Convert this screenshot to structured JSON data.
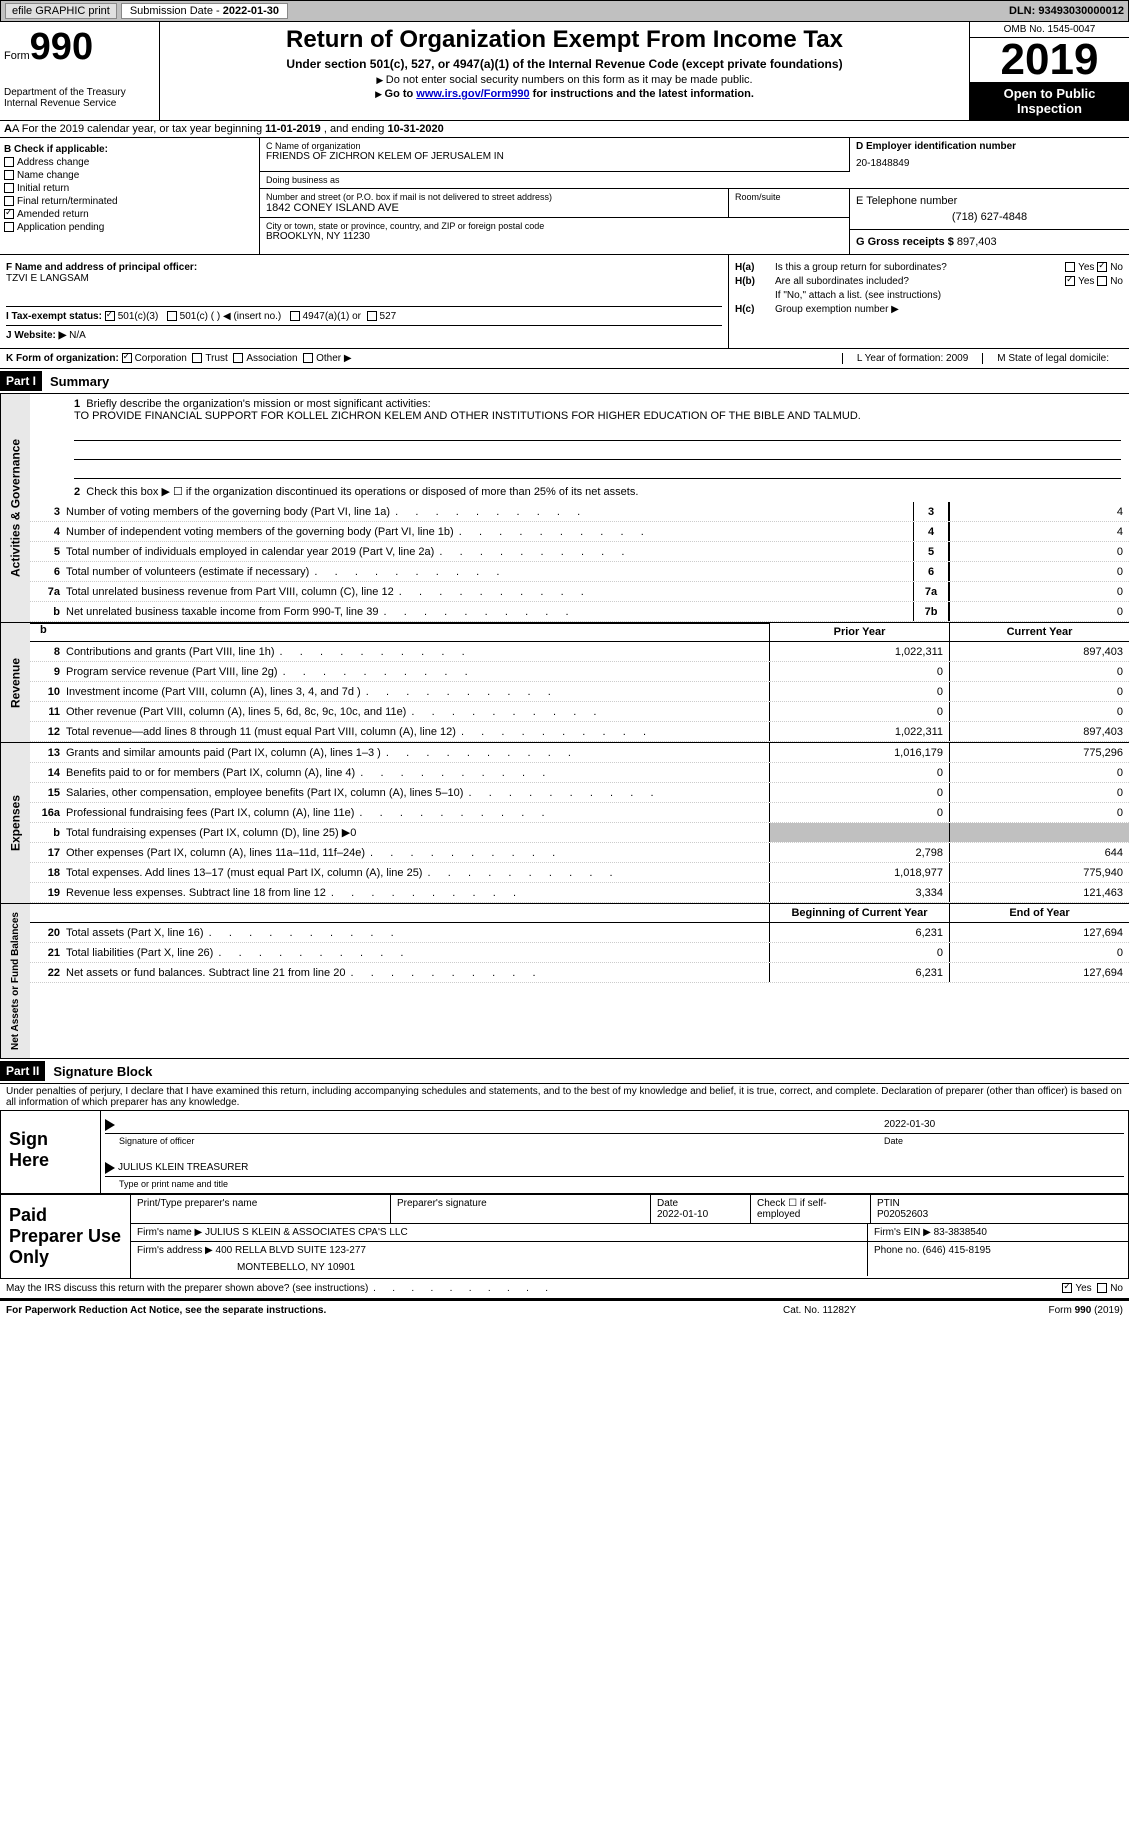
{
  "topbar": {
    "efile": "efile GRAPHIC print",
    "sub_label": "Submission Date - ",
    "sub_date": "2022-01-30",
    "dln": "DLN: 93493030000012"
  },
  "header": {
    "form_word": "Form",
    "form_num": "990",
    "dept": "Department of the Treasury\nInternal Revenue Service",
    "title": "Return of Organization Exempt From Income Tax",
    "sub": "Under section 501(c), 527, or 4947(a)(1) of the Internal Revenue Code (except private foundations)",
    "note1": "Do not enter social security numbers on this form as it may be made public.",
    "note2_pre": "Go to ",
    "note2_link": "www.irs.gov/Form990",
    "note2_post": " for instructions and the latest information.",
    "omb": "OMB No. 1545-0047",
    "year": "2019",
    "open": "Open to Public Inspection"
  },
  "row_a": {
    "text_pre": "A For the 2019 calendar year, or tax year beginning ",
    "begin": "11-01-2019",
    "mid": "  , and ending ",
    "end": "10-31-2020"
  },
  "box_b": {
    "hdr": "B Check if applicable:",
    "items": [
      {
        "label": "Address change",
        "checked": false
      },
      {
        "label": "Name change",
        "checked": false
      },
      {
        "label": "Initial return",
        "checked": false
      },
      {
        "label": "Final return/terminated",
        "checked": false
      },
      {
        "label": "Amended return",
        "checked": true
      },
      {
        "label": "Application pending",
        "checked": false
      }
    ]
  },
  "box_c": {
    "name_hdr": "C Name of organization",
    "name": "FRIENDS OF ZICHRON KELEM OF JERUSALEM IN",
    "dba_hdr": "Doing business as",
    "dba": "",
    "addr_hdr": "Number and street (or P.O. box if mail is not delivered to street address)",
    "room_hdr": "Room/suite",
    "addr": "1842 CONEY ISLAND AVE",
    "city_hdr": "City or town, state or province, country, and ZIP or foreign postal code",
    "city": "BROOKLYN, NY  11230"
  },
  "box_d": {
    "ein_hdr": "D Employer identification number",
    "ein": "20-1848849",
    "tel_hdr": "E Telephone number",
    "tel": "(718) 627-4848",
    "gross_hdr": "G Gross receipts $ ",
    "gross": "897,403"
  },
  "box_f": {
    "hdr": "F  Name and address of principal officer:",
    "name": "TZVI E LANGSAM"
  },
  "box_i": {
    "hdr": "I  Tax-exempt status:",
    "opts": [
      "501(c)(3)",
      "501(c) (   ) ◀ (insert no.)",
      "4947(a)(1) or",
      "527"
    ]
  },
  "box_j": {
    "hdr": "J  Website: ▶",
    "val": "  N/A"
  },
  "box_h": {
    "a": "Is this a group return for subordinates?",
    "b": "Are all subordinates included?",
    "b_note": "If \"No,\" attach a list. (see instructions)",
    "c": "Group exemption number ▶",
    "yes": "Yes",
    "no": "No"
  },
  "box_k": {
    "hdr": "K Form of organization:",
    "opts": [
      "Corporation",
      "Trust",
      "Association",
      "Other ▶"
    ]
  },
  "box_lm": {
    "l": "L Year of formation: 2009",
    "m": "M State of legal domicile:"
  },
  "part1": {
    "hdr": "Part I",
    "title": "Summary",
    "q1": "Briefly describe the organization's mission or most significant activities:",
    "mission": "TO PROVIDE FINANCIAL SUPPORT FOR KOLLEL ZICHRON KELEM AND OTHER INSTITUTIONS FOR HIGHER EDUCATION OF THE BIBLE AND TALMUD.",
    "q2": "Check this box ▶ ☐  if the organization discontinued its operations or disposed of more than 25% of its net assets.",
    "col_py": "Prior Year",
    "col_cy": "Current Year",
    "col_boy": "Beginning of Current Year",
    "col_eoy": "End of Year",
    "side_gov": "Activities & Governance",
    "side_rev": "Revenue",
    "side_exp": "Expenses",
    "side_net": "Net Assets or Fund Balances",
    "gov_rows": [
      {
        "n": "3",
        "lbl": "Number of voting members of the governing body (Part VI, line 1a)",
        "box": "3",
        "v": "4"
      },
      {
        "n": "4",
        "lbl": "Number of independent voting members of the governing body (Part VI, line 1b)",
        "box": "4",
        "v": "4"
      },
      {
        "n": "5",
        "lbl": "Total number of individuals employed in calendar year 2019 (Part V, line 2a)",
        "box": "5",
        "v": "0"
      },
      {
        "n": "6",
        "lbl": "Total number of volunteers (estimate if necessary)",
        "box": "6",
        "v": "0"
      },
      {
        "n": "7a",
        "lbl": "Total unrelated business revenue from Part VIII, column (C), line 12",
        "box": "7a",
        "v": "0"
      },
      {
        "n": "b",
        "lbl": "Net unrelated business taxable income from Form 990-T, line 39",
        "box": "7b",
        "v": "0"
      }
    ],
    "rev_rows": [
      {
        "n": "8",
        "lbl": "Contributions and grants (Part VIII, line 1h)",
        "py": "1,022,311",
        "cy": "897,403"
      },
      {
        "n": "9",
        "lbl": "Program service revenue (Part VIII, line 2g)",
        "py": "0",
        "cy": "0"
      },
      {
        "n": "10",
        "lbl": "Investment income (Part VIII, column (A), lines 3, 4, and 7d )",
        "py": "0",
        "cy": "0"
      },
      {
        "n": "11",
        "lbl": "Other revenue (Part VIII, column (A), lines 5, 6d, 8c, 9c, 10c, and 11e)",
        "py": "0",
        "cy": "0"
      },
      {
        "n": "12",
        "lbl": "Total revenue—add lines 8 through 11 (must equal Part VIII, column (A), line 12)",
        "py": "1,022,311",
        "cy": "897,403"
      }
    ],
    "exp_rows": [
      {
        "n": "13",
        "lbl": "Grants and similar amounts paid (Part IX, column (A), lines 1–3 )",
        "py": "1,016,179",
        "cy": "775,296"
      },
      {
        "n": "14",
        "lbl": "Benefits paid to or for members (Part IX, column (A), line 4)",
        "py": "0",
        "cy": "0"
      },
      {
        "n": "15",
        "lbl": "Salaries, other compensation, employee benefits (Part IX, column (A), lines 5–10)",
        "py": "0",
        "cy": "0"
      },
      {
        "n": "16a",
        "lbl": "Professional fundraising fees (Part IX, column (A), line 11e)",
        "py": "0",
        "cy": "0"
      },
      {
        "n": "b",
        "lbl": "Total fundraising expenses (Part IX, column (D), line 25) ▶0",
        "py": "",
        "cy": "",
        "shaded": true
      },
      {
        "n": "17",
        "lbl": "Other expenses (Part IX, column (A), lines 11a–11d, 11f–24e)",
        "py": "2,798",
        "cy": "644"
      },
      {
        "n": "18",
        "lbl": "Total expenses. Add lines 13–17 (must equal Part IX, column (A), line 25)",
        "py": "1,018,977",
        "cy": "775,940"
      },
      {
        "n": "19",
        "lbl": "Revenue less expenses. Subtract line 18 from line 12",
        "py": "3,334",
        "cy": "121,463"
      }
    ],
    "net_rows": [
      {
        "n": "20",
        "lbl": "Total assets (Part X, line 16)",
        "py": "6,231",
        "cy": "127,694"
      },
      {
        "n": "21",
        "lbl": "Total liabilities (Part X, line 26)",
        "py": "0",
        "cy": "0"
      },
      {
        "n": "22",
        "lbl": "Net assets or fund balances. Subtract line 21 from line 20",
        "py": "6,231",
        "cy": "127,694"
      }
    ]
  },
  "part2": {
    "hdr": "Part II",
    "title": "Signature Block",
    "decl": "Under penalties of perjury, I declare that I have examined this return, including accompanying schedules and statements, and to the best of my knowledge and belief, it is true, correct, and complete. Declaration of preparer (other than officer) is based on all information of which preparer has any knowledge.",
    "sign_here": "Sign Here",
    "sig_officer": "Signature of officer",
    "date": "Date",
    "sig_date": "2022-01-30",
    "name_title": "JULIUS KLEIN  TREASURER",
    "type_name": "Type or print name and title",
    "paid": "Paid Preparer Use Only",
    "prep_name_hdr": "Print/Type preparer's name",
    "prep_sig_hdr": "Preparer's signature",
    "prep_date_hdr": "Date",
    "prep_date": "2022-01-10",
    "check_if": "Check ☐ if self-employed",
    "ptin_hdr": "PTIN",
    "ptin": "P02052603",
    "firm_name_hdr": "Firm's name    ▶ ",
    "firm_name": "JULIUS S KLEIN & ASSOCIATES CPA'S LLC",
    "firm_ein_hdr": "Firm's EIN ▶ ",
    "firm_ein": "83-3838540",
    "firm_addr_hdr": "Firm's address ▶ ",
    "firm_addr": "400 RELLA BLVD SUITE 123-277",
    "firm_city": "MONTEBELLO, NY  10901",
    "phone_hdr": "Phone no. ",
    "phone": "(646) 415-8195",
    "may_irs": "May the IRS discuss this return with the preparer shown above? (see instructions)"
  },
  "footer": {
    "l": "For Paperwork Reduction Act Notice, see the separate instructions.",
    "m": "Cat. No. 11282Y",
    "r": "Form 990 (2019)"
  }
}
